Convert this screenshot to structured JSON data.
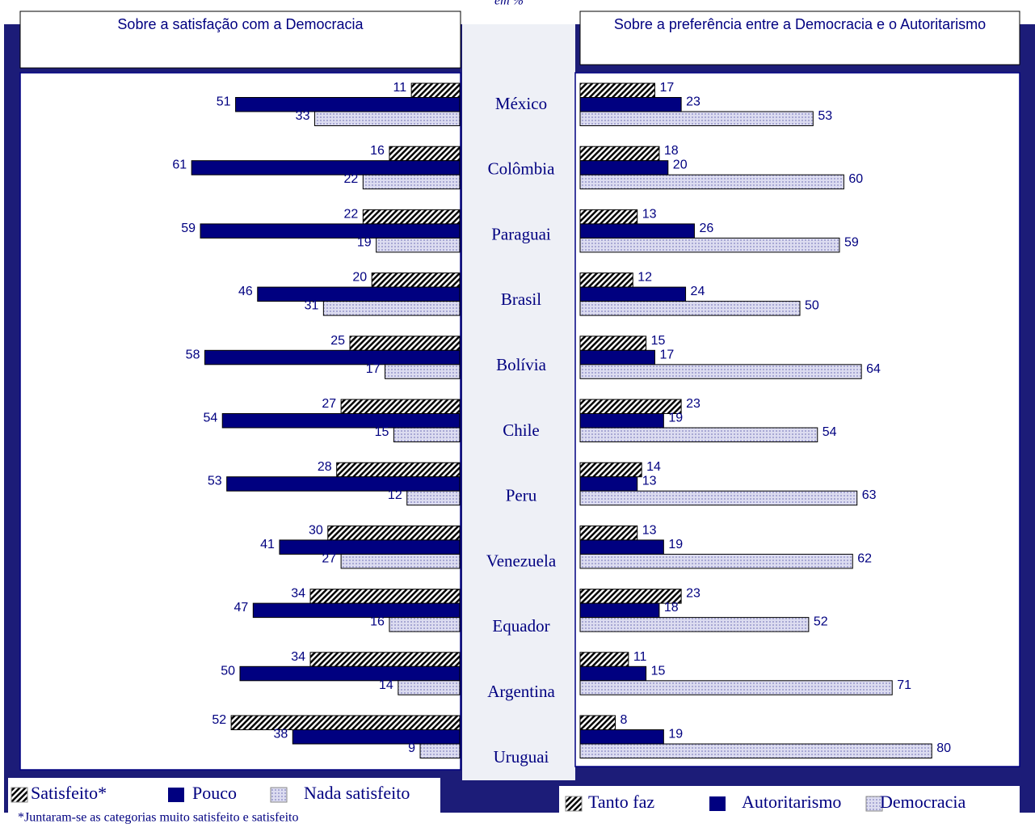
{
  "subtitle": "em %",
  "chart_data": {
    "type": "bar",
    "orientation": "horizontal",
    "categories": [
      "México",
      "Colômbia",
      "Paraguai",
      "Brasil",
      "Bolívia",
      "Chile",
      "Peru",
      "Venezuela",
      "Equador",
      "Argentina",
      "Uruguai"
    ],
    "xlim": [
      0,
      100
    ],
    "panels": [
      {
        "title": "Sobre a satisfação com a Democracia",
        "direction": "left",
        "note": "*Juntaram-se as categorias muito satisfeito e satisfeito",
        "series": [
          {
            "name": "Satisfeito*",
            "color": "#1a1a80",
            "hatch": "diagonal",
            "values": [
              11,
              16,
              22,
              20,
              25,
              27,
              28,
              30,
              34,
              34,
              52
            ]
          },
          {
            "name": "Pouco",
            "color": "#000080",
            "values": [
              51,
              61,
              59,
              46,
              58,
              54,
              53,
              41,
              47,
              50,
              38
            ]
          },
          {
            "name": "Nada satisfeito",
            "color": "#c4c4e4",
            "hatch": "dots",
            "values": [
              33,
              22,
              19,
              31,
              17,
              15,
              12,
              27,
              16,
              14,
              9
            ]
          }
        ]
      },
      {
        "title": "Sobre a preferência entre a Democracia e o Autoritarismo",
        "direction": "right",
        "series": [
          {
            "name": "Tanto faz",
            "color": "#4a4a9a",
            "hatch": "diagonal",
            "values": [
              17,
              18,
              13,
              12,
              15,
              23,
              14,
              13,
              23,
              11,
              8
            ]
          },
          {
            "name": "Autoritarismo",
            "color": "#000080",
            "values": [
              23,
              20,
              26,
              24,
              17,
              19,
              13,
              19,
              18,
              15,
              19
            ]
          },
          {
            "name": "Democracia",
            "color": "#c4c4e4",
            "hatch": "dots",
            "values": [
              53,
              60,
              59,
              50,
              64,
              54,
              63,
              62,
              52,
              71,
              80
            ]
          }
        ]
      }
    ]
  }
}
